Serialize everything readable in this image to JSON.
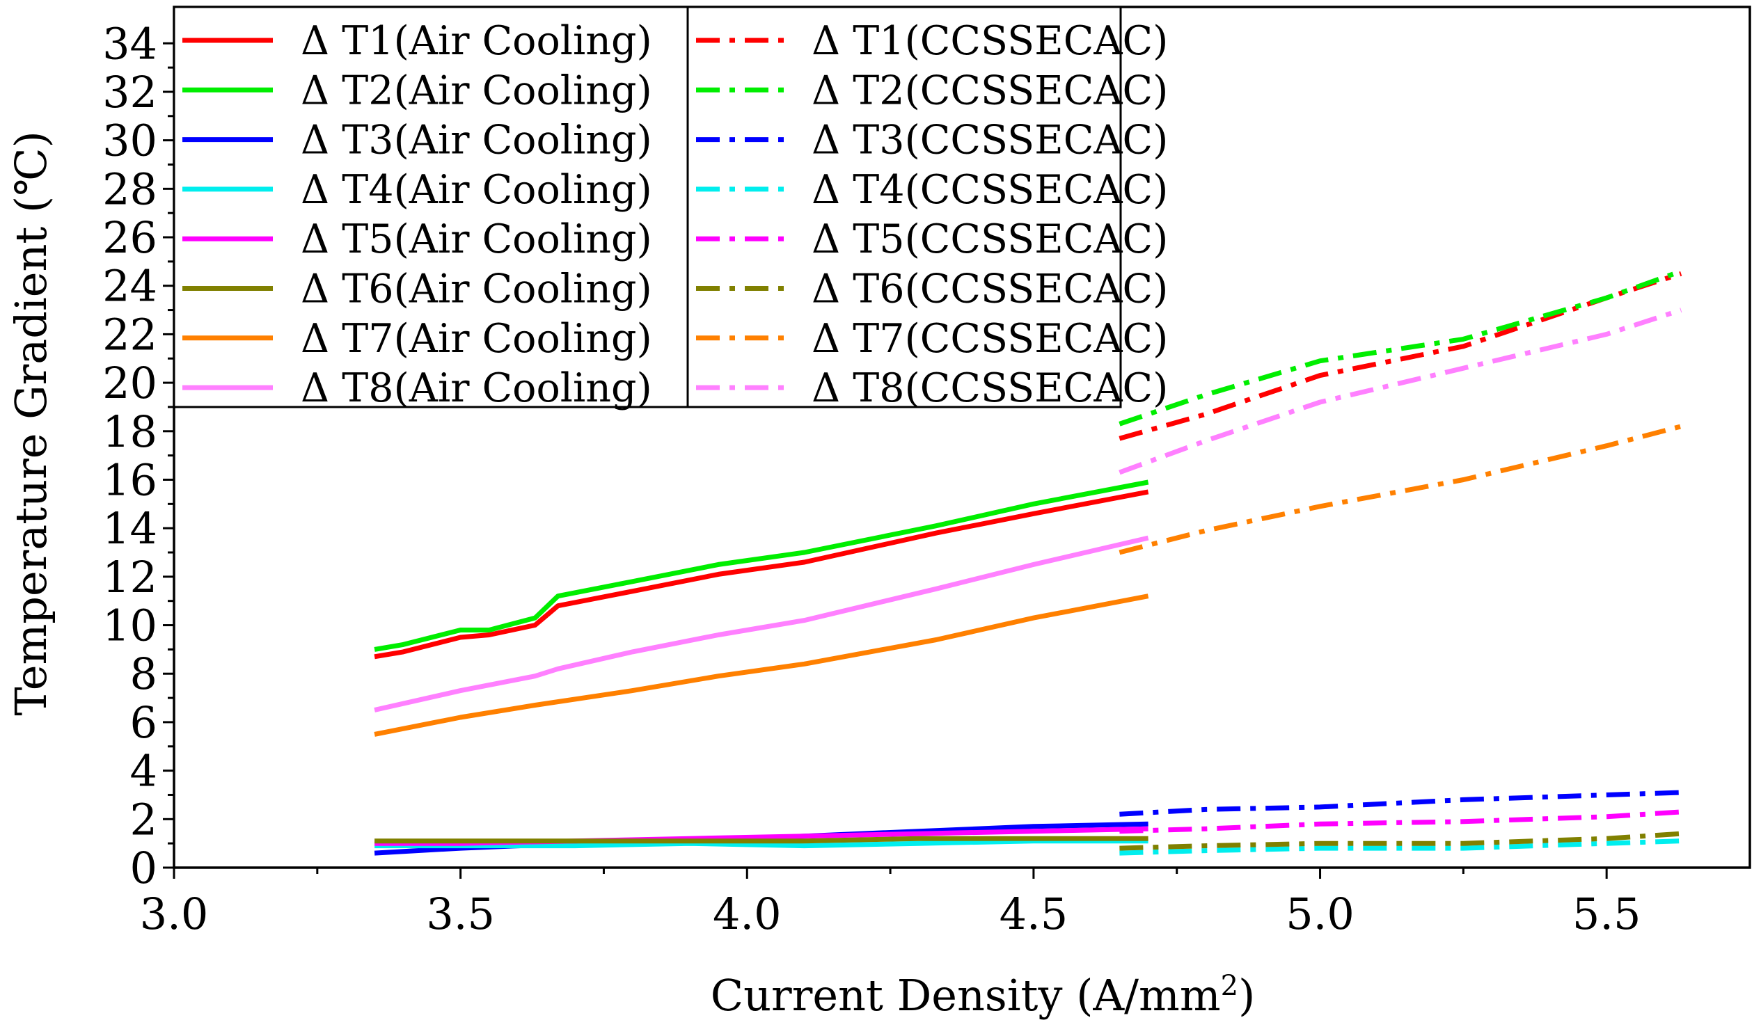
{
  "chart_data": {
    "type": "line",
    "title": "",
    "xlabel": "Current Density (A/mm",
    "xlabel_sup": "2",
    "xlabel_close": ")",
    "ylabel": "Temperature Gradient (℃)",
    "xlim": [
      3.0,
      5.75
    ],
    "ylim": [
      0,
      35.5
    ],
    "xticks": [
      3.0,
      3.5,
      4.0,
      4.5,
      5.0,
      5.5
    ],
    "xtick_labels": [
      "3.0",
      "3.5",
      "4.0",
      "4.5",
      "5.0",
      "5.5"
    ],
    "yticks": [
      0,
      2,
      4,
      6,
      8,
      10,
      12,
      14,
      16,
      18,
      20,
      22,
      24,
      26,
      28,
      30,
      32,
      34
    ],
    "ytick_labels": [
      "0",
      "2",
      "4",
      "6",
      "8",
      "10",
      "12",
      "14",
      "16",
      "18",
      "20",
      "22",
      "24",
      "26",
      "28",
      "30",
      "32",
      "34"
    ],
    "grid": false,
    "legend_position": "top-left",
    "series": [
      {
        "name": "Δ T1(Air Cooling)",
        "color": "#ff0000",
        "style": "solid",
        "x": [
          3.35,
          3.4,
          3.5,
          3.55,
          3.63,
          3.67,
          3.8,
          3.95,
          4.1,
          4.33,
          4.5,
          4.7
        ],
        "y": [
          8.7,
          8.9,
          9.5,
          9.6,
          10.0,
          10.8,
          11.4,
          12.1,
          12.6,
          13.8,
          14.6,
          15.5
        ]
      },
      {
        "name": "Δ T2(Air Cooling)",
        "color": "#00ee00",
        "style": "solid",
        "x": [
          3.35,
          3.4,
          3.5,
          3.55,
          3.63,
          3.67,
          3.8,
          3.95,
          4.1,
          4.33,
          4.5,
          4.7
        ],
        "y": [
          9.0,
          9.2,
          9.8,
          9.8,
          10.3,
          11.2,
          11.8,
          12.5,
          13.0,
          14.1,
          15.0,
          15.9
        ]
      },
      {
        "name": "Δ T3(Air Cooling)",
        "color": "#0000ff",
        "style": "solid",
        "x": [
          3.35,
          3.5,
          3.7,
          3.9,
          4.1,
          4.3,
          4.5,
          4.7
        ],
        "y": [
          0.6,
          0.8,
          1.0,
          1.1,
          1.3,
          1.5,
          1.7,
          1.8
        ]
      },
      {
        "name": "Δ T4(Air Cooling)",
        "color": "#00eeee",
        "style": "solid",
        "x": [
          3.35,
          3.5,
          3.7,
          3.9,
          4.1,
          4.3,
          4.5,
          4.7
        ],
        "y": [
          0.9,
          0.9,
          0.9,
          1.0,
          0.9,
          1.0,
          1.1,
          1.1
        ]
      },
      {
        "name": "Δ T5(Air Cooling)",
        "color": "#ff00ff",
        "style": "solid",
        "x": [
          3.35,
          3.5,
          3.7,
          3.9,
          4.1,
          4.3,
          4.5,
          4.7
        ],
        "y": [
          1.0,
          1.0,
          1.1,
          1.2,
          1.3,
          1.4,
          1.5,
          1.6
        ]
      },
      {
        "name": "Δ T6(Air Cooling)",
        "color": "#808000",
        "style": "solid",
        "x": [
          3.35,
          3.5,
          3.7,
          3.9,
          4.1,
          4.3,
          4.5,
          4.7
        ],
        "y": [
          1.1,
          1.1,
          1.1,
          1.1,
          1.1,
          1.2,
          1.2,
          1.2
        ]
      },
      {
        "name": "Δ T7(Air Cooling)",
        "color": "#ff8000",
        "style": "solid",
        "x": [
          3.35,
          3.5,
          3.63,
          3.8,
          3.95,
          4.1,
          4.33,
          4.5,
          4.7
        ],
        "y": [
          5.5,
          6.2,
          6.7,
          7.3,
          7.9,
          8.4,
          9.4,
          10.3,
          11.2
        ]
      },
      {
        "name": "Δ T8(Air Cooling)",
        "color": "#ff80ff",
        "style": "solid",
        "x": [
          3.35,
          3.5,
          3.63,
          3.67,
          3.8,
          3.95,
          4.1,
          4.33,
          4.5,
          4.7
        ],
        "y": [
          6.5,
          7.3,
          7.9,
          8.2,
          8.9,
          9.6,
          10.2,
          11.5,
          12.5,
          13.6
        ]
      },
      {
        "name": "Δ T1(CCSSECAC)",
        "color": "#ff0000",
        "style": "dashdot",
        "x": [
          4.65,
          4.8,
          5.0,
          5.25,
          5.5,
          5.63
        ],
        "y": [
          17.7,
          18.7,
          20.3,
          21.5,
          23.5,
          24.5
        ]
      },
      {
        "name": "Δ T2(CCSSECAC)",
        "color": "#00ee00",
        "style": "dashdot",
        "x": [
          4.65,
          4.8,
          5.0,
          5.25,
          5.5,
          5.63
        ],
        "y": [
          18.3,
          19.5,
          20.9,
          21.8,
          23.5,
          24.6
        ]
      },
      {
        "name": "Δ T3(CCSSECAC)",
        "color": "#0000ff",
        "style": "dashdot",
        "x": [
          4.65,
          4.8,
          5.0,
          5.25,
          5.5,
          5.63
        ],
        "y": [
          2.2,
          2.4,
          2.5,
          2.8,
          3.0,
          3.1
        ]
      },
      {
        "name": "Δ T4(CCSSECAC)",
        "color": "#00eeee",
        "style": "dashdot",
        "x": [
          4.65,
          4.8,
          5.0,
          5.25,
          5.5,
          5.63
        ],
        "y": [
          0.6,
          0.7,
          0.8,
          0.8,
          1.0,
          1.1
        ]
      },
      {
        "name": "Δ T5(CCSSECAC)",
        "color": "#ff00ff",
        "style": "dashdot",
        "x": [
          4.65,
          4.8,
          5.0,
          5.25,
          5.5,
          5.63
        ],
        "y": [
          1.5,
          1.6,
          1.8,
          1.9,
          2.1,
          2.3
        ]
      },
      {
        "name": "Δ T6(CCSSECAC)",
        "color": "#808000",
        "style": "dashdot",
        "x": [
          4.65,
          4.8,
          5.0,
          5.25,
          5.5,
          5.63
        ],
        "y": [
          0.8,
          0.9,
          1.0,
          1.0,
          1.2,
          1.4
        ]
      },
      {
        "name": "Δ T7(CCSSECAC)",
        "color": "#ff8000",
        "style": "dashdot",
        "x": [
          4.65,
          4.8,
          5.0,
          5.25,
          5.5,
          5.63
        ],
        "y": [
          13.0,
          13.9,
          14.9,
          16.0,
          17.4,
          18.2
        ]
      },
      {
        "name": "Δ T8(CCSSECAC)",
        "color": "#ff80ff",
        "style": "dashdot",
        "x": [
          4.65,
          4.8,
          5.0,
          5.25,
          5.5,
          5.63
        ],
        "y": [
          16.3,
          17.6,
          19.2,
          20.6,
          22.0,
          23.0
        ]
      }
    ]
  }
}
